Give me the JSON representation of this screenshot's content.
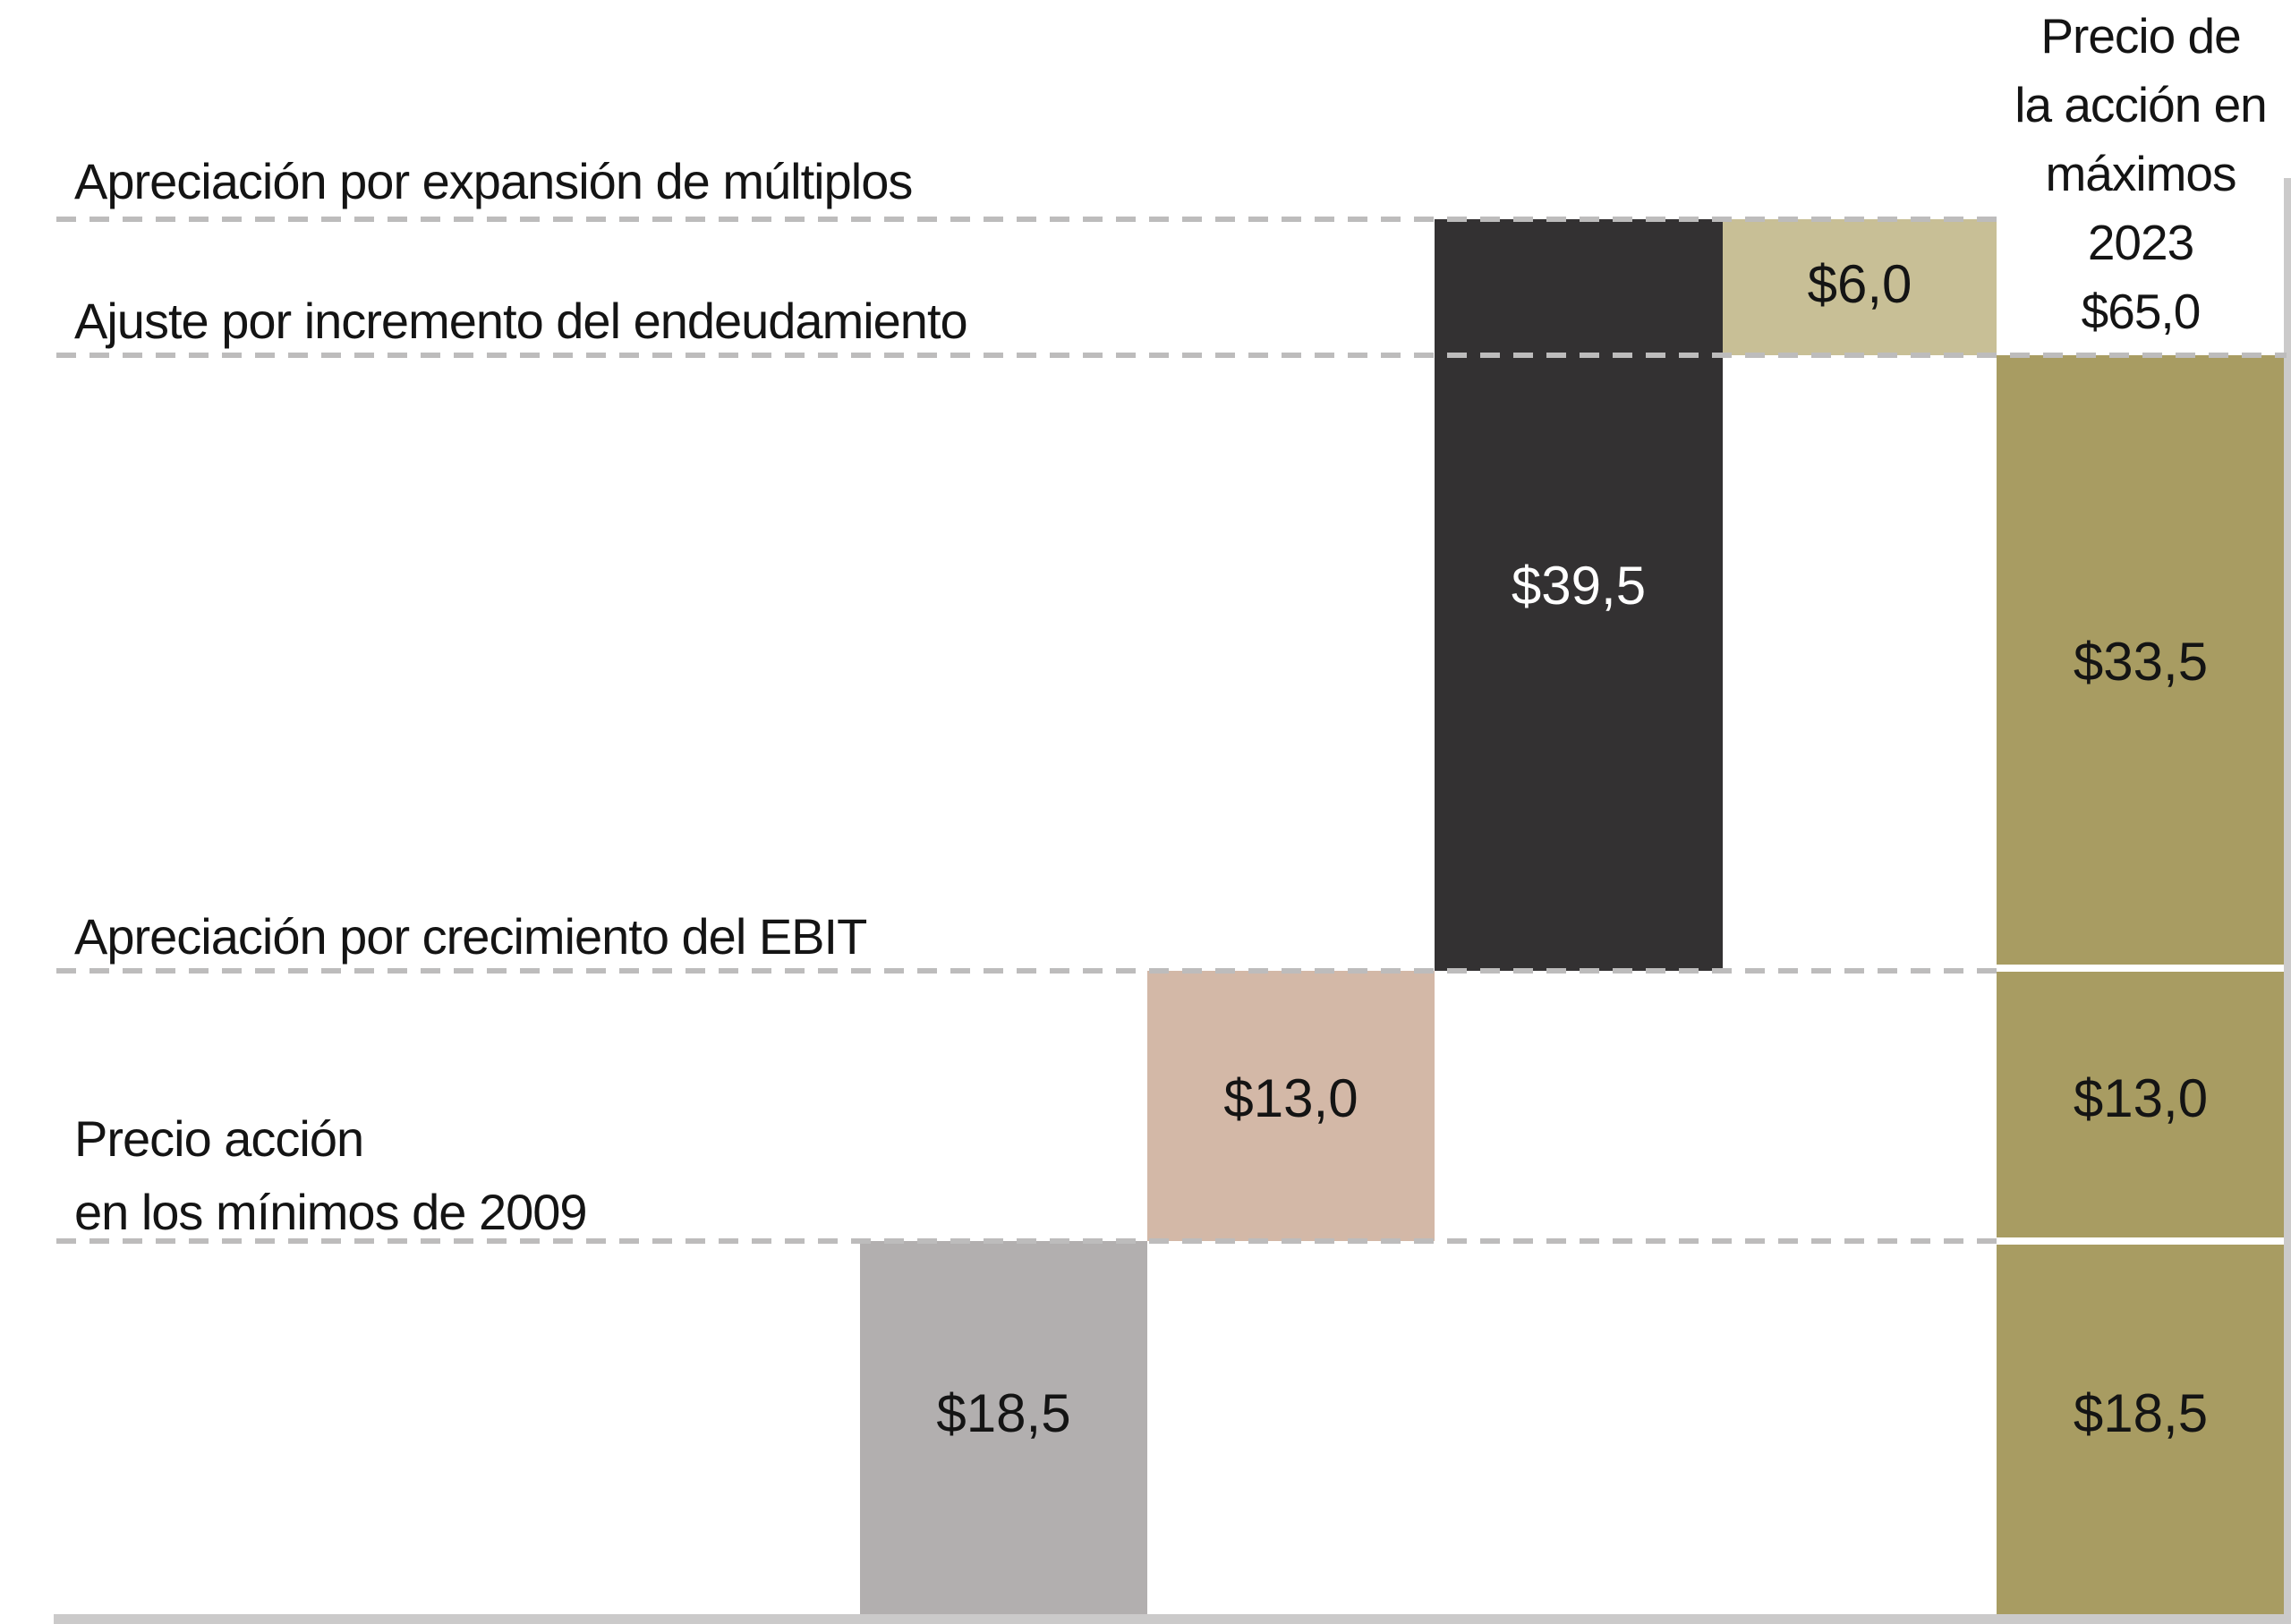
{
  "chart_data": {
    "type": "bar",
    "subtype": "waterfall",
    "value_prefix": "$",
    "axis": {
      "ymin": 0,
      "ymax": 71.0,
      "grid": "dashed-horizontal"
    },
    "gridline_levels": [
      18.5,
      31.5,
      65.0,
      71.0
    ],
    "steps": [
      {
        "label": "Precio acción en los mínimos de 2009",
        "label_lines": [
          "Precio acción",
          "en los mínimos de  2009"
        ],
        "value": 18.5,
        "display": "$18,5",
        "start": 0.0,
        "end": 18.5,
        "role": "start-total",
        "color": "#b2afaf"
      },
      {
        "label": "Apreciación por crecimiento del EBIT",
        "value": 13.0,
        "display": "$13,0",
        "start": 18.5,
        "end": 31.5,
        "role": "increase",
        "color": "#d3b8a7"
      },
      {
        "label": "Apreciación por expansión de múltiplos",
        "value": 39.5,
        "display": "$39,5",
        "start": 31.5,
        "end": 71.0,
        "role": "increase",
        "color": "#333132",
        "value_label_color": "#ffffff"
      },
      {
        "label": "Ajuste por incremento del endeudamiento",
        "value": -6.0,
        "display": "$6,0",
        "start": 71.0,
        "end": 65.0,
        "role": "decrease",
        "color": "#c8bf96"
      },
      {
        "label": "Precio de la acción en máximos 2023",
        "header_lines": [
          "Precio de",
          "la acción en",
          "máximos",
          "2023",
          "$65,0"
        ],
        "value": 65.0,
        "display": "$65,0",
        "start": 0.0,
        "end": 65.0,
        "role": "end-total",
        "color": "#a89c62",
        "segments": [
          {
            "display": "$33,5",
            "value": 33.5
          },
          {
            "display": "$13,0",
            "value": 13.0
          },
          {
            "display": "$18,5",
            "value": 18.5
          }
        ]
      }
    ],
    "style": {
      "dashed_line_color": "#bdbcbc",
      "baseline_color": "#cbcaca",
      "text_color": "#141414"
    }
  }
}
